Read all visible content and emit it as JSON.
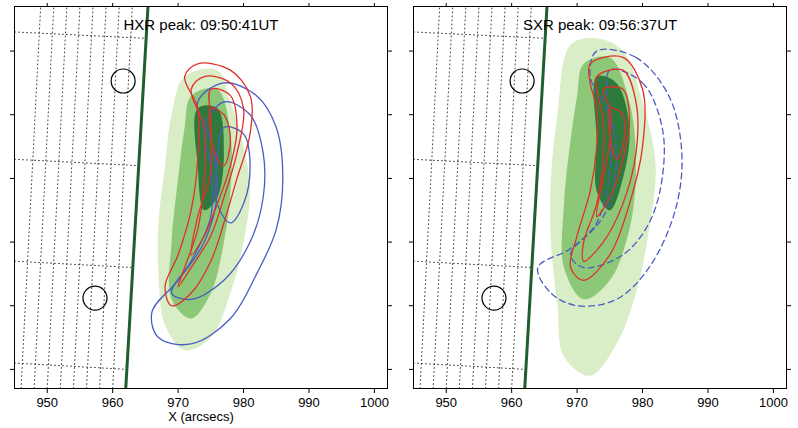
{
  "chart_data": [
    {
      "type": "contour",
      "title": "HXR peak: 09:50:41UT",
      "x_label": "X (arcsecs)",
      "xlim": [
        945,
        1002
      ],
      "xticks": [
        950,
        960,
        970,
        980,
        990,
        1000
      ],
      "ylim": [
        7,
        67
      ],
      "yticks": [
        10,
        20,
        30,
        40,
        50,
        60
      ],
      "tick_labels": "x",
      "solar_grid": {
        "line_style": "dotted",
        "color": "#444444",
        "meridians": [
          [
            946,
            7,
            949,
            67
          ],
          [
            948,
            7,
            951,
            67
          ],
          [
            950,
            7,
            953,
            67
          ],
          [
            952,
            7,
            955,
            67
          ],
          [
            954,
            7,
            957,
            67
          ],
          [
            956,
            7,
            959,
            67
          ],
          [
            958,
            7,
            961,
            67
          ],
          [
            960,
            7,
            963,
            67
          ]
        ],
        "parallels": [
          [
            945,
            63,
            965.1,
            62
          ],
          [
            945,
            43,
            964,
            42
          ],
          [
            945,
            27,
            963.1,
            26
          ],
          [
            945,
            11,
            962.2,
            10
          ]
        ]
      },
      "image": {
        "levels": [
          {
            "color": "#d9edc6",
            "x": [
              971,
              976,
              978,
              980,
              981,
              980,
              978,
              975,
              971,
              968,
              967,
              967,
              968,
              969
            ],
            "y": [
              56,
              57,
              52,
              45,
              38,
              30,
              22,
              15,
              13,
              17,
              25,
              33,
              42,
              50
            ]
          },
          {
            "color": "#8cc878",
            "x": [
              972,
              976,
              978,
              978,
              977,
              975,
              972,
              969,
              969,
              970,
              971
            ],
            "y": [
              53,
              54,
              47,
              38,
              30,
              22,
              18,
              21,
              30,
              40,
              48
            ]
          },
          {
            "color": "#2e7a3c",
            "x": [
              973,
              976,
              977,
              976,
              974,
              973
            ],
            "y": [
              51,
              51,
              44,
              37,
              35,
              42
            ]
          }
        ]
      },
      "limb": {
        "color": "#1f5e2e",
        "x": [
          962,
          965.4
        ],
        "y": [
          7,
          67
        ]
      },
      "markers": {
        "marker": "circle",
        "x": [
          961.6,
          957.3
        ],
        "y": [
          55.3,
          21.2
        ]
      },
      "contours": [
        {
          "color": "#4a5cc4",
          "line_style": "solid",
          "levels": [
            {
              "x": [
                977,
                982,
                985,
                986,
                985,
                982,
                978,
                972,
                967,
                966,
                970,
                974,
                976,
                975,
                973
              ],
              "y": [
                55,
                53,
                48,
                40,
                32,
                25,
                18,
                14,
                15,
                19,
                24,
                30,
                38,
                46,
                52
              ]
            },
            {
              "x": [
                977,
                981,
                983,
                983,
                981,
                977,
                972,
                969,
                972,
                975,
                975,
                974
              ],
              "y": [
                52,
                50,
                44,
                37,
                30,
                24,
                21,
                22,
                27,
                34,
                42,
                48
              ]
            },
            {
              "x": [
                977,
                980,
                981,
                980,
                978,
                976,
                976
              ],
              "y": [
                48,
                47,
                42,
                36,
                33,
                36,
                43
              ]
            }
          ]
        },
        {
          "color": "#e0302a",
          "line_style": "solid",
          "levels": [
            {
              "x": [
                973,
                978,
                981,
                981,
                979,
                977,
                975,
                972,
                969,
                968,
                970,
                972,
                973,
                973,
                971
              ],
              "y": [
                58,
                57,
                53,
                47,
                40,
                33,
                27,
                22,
                20,
                23,
                28,
                35,
                43,
                51,
                56
              ]
            },
            {
              "x": [
                974,
                978,
                980,
                979,
                977,
                975,
                972,
                970,
                971,
                973,
                974,
                974,
                972
              ],
              "y": [
                56,
                55,
                51,
                44,
                37,
                31,
                26,
                23,
                26,
                32,
                40,
                48,
                54
              ]
            },
            {
              "x": [
                975,
                978,
                979,
                978,
                976,
                974,
                972,
                973,
                975,
                975
              ],
              "y": [
                54,
                53,
                48,
                42,
                36,
                31,
                28,
                34,
                41,
                49
              ]
            },
            {
              "x": [
                975,
                977,
                978,
                977,
                976,
                975
              ],
              "y": [
                51,
                50,
                46,
                42,
                43,
                47
              ]
            }
          ]
        }
      ]
    },
    {
      "type": "contour",
      "title": "SXR peak: 09:56:37UT",
      "xlim": [
        945,
        1002
      ],
      "xticks": [
        950,
        960,
        970,
        980,
        990,
        1000
      ],
      "ylim": [
        7,
        67
      ],
      "yticks": [
        10,
        20,
        30,
        40,
        50,
        60
      ],
      "tick_labels": "x",
      "solar_grid": {
        "line_style": "dotted",
        "color": "#444444",
        "meridians": [
          [
            946,
            7,
            949,
            67
          ],
          [
            948,
            7,
            951,
            67
          ],
          [
            950,
            7,
            953,
            67
          ],
          [
            952,
            7,
            955,
            67
          ],
          [
            954,
            7,
            957,
            67
          ],
          [
            956,
            7,
            959,
            67
          ],
          [
            958,
            7,
            961,
            67
          ],
          [
            960,
            7,
            963,
            67
          ]
        ],
        "parallels": [
          [
            945,
            63,
            965.1,
            62
          ],
          [
            945,
            43,
            964,
            42
          ],
          [
            945,
            27,
            963.1,
            26
          ],
          [
            945,
            11,
            962.2,
            10
          ]
        ]
      },
      "image": {
        "levels": [
          {
            "color": "#d9edc6",
            "x": [
              969,
              973,
              977,
              980,
              982,
              981,
              979,
              976,
              972,
              968,
              967,
              966,
              966,
              967
            ],
            "y": [
              61,
              62,
              60,
              52,
              42,
              32,
              22,
              14,
              9,
              12,
              20,
              30,
              40,
              50
            ]
          },
          {
            "color": "#8cc878",
            "x": [
              971,
              975,
              978,
              979,
              978,
              975,
              971,
              968,
              968,
              969,
              970
            ],
            "y": [
              58,
              59,
              52,
              42,
              32,
              24,
              21,
              26,
              36,
              46,
              53
            ]
          },
          {
            "color": "#2e7a3c",
            "x": [
              973,
              976,
              978,
              977,
              975,
              973,
              973
            ],
            "y": [
              56,
              55,
              48,
              40,
              35,
              38,
              46
            ]
          }
        ]
      },
      "limb": {
        "color": "#1f5e2e",
        "x": [
          962,
          965.4
        ],
        "y": [
          7,
          67
        ]
      },
      "markers": {
        "marker": "circle",
        "x": [
          961.6,
          957.3
        ],
        "y": [
          55.3,
          21.2
        ]
      },
      "contours": [
        {
          "color": "#4a5cc4",
          "line_style": "dashed",
          "levels": [
            {
              "x": [
                973,
                979,
                984,
                986,
                985,
                981,
                976,
                970,
                966,
                964,
                969,
                974,
                976,
                975,
                972
              ],
              "y": [
                60,
                59,
                53,
                44,
                35,
                26,
                21,
                20,
                22,
                26,
                29,
                34,
                42,
                50,
                56
              ]
            },
            {
              "x": [
                975,
                980,
                983,
                983,
                981,
                977,
                971,
                969,
                973,
                975,
                975
              ],
              "y": [
                57,
                55,
                48,
                40,
                33,
                28,
                26,
                28,
                33,
                41,
                49
              ]
            }
          ]
        },
        {
          "color": "#e0302a",
          "line_style": "solid",
          "levels": [
            {
              "x": [
                972,
                977,
                980,
                980,
                978,
                975,
                971,
                969,
                970,
                972,
                973,
                973,
                972
              ],
              "y": [
                58,
                59,
                54,
                45,
                36,
                28,
                24,
                26,
                31,
                38,
                45,
                51,
                55
              ]
            },
            {
              "x": [
                973,
                977,
                979,
                979,
                977,
                974,
                971,
                971,
                973,
                974,
                974,
                973
              ],
              "y": [
                56,
                57,
                52,
                44,
                36,
                30,
                27,
                30,
                36,
                43,
                49,
                54
              ]
            },
            {
              "x": [
                974,
                977,
                978,
                977,
                975,
                973,
                974,
                975,
                975
              ],
              "y": [
                54,
                54,
                49,
                43,
                37,
                34,
                40,
                46,
                51
              ]
            },
            {
              "x": [
                975,
                977,
                977,
                976,
                975
              ],
              "y": [
                51,
                50,
                45,
                43,
                47
              ]
            }
          ]
        }
      ]
    }
  ]
}
